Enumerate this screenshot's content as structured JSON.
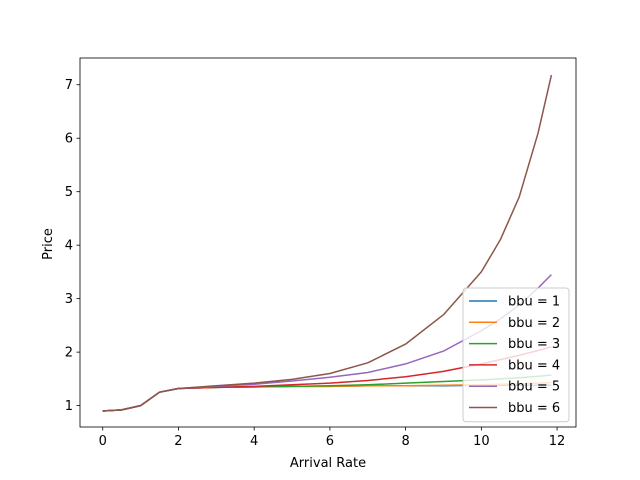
{
  "chart_data": {
    "type": "line",
    "title": "",
    "xlabel": "Arrival Rate",
    "ylabel": "Price",
    "xlim": [
      -0.6,
      12.5
    ],
    "ylim": [
      0.6,
      7.5
    ],
    "xticks": [
      "0",
      "2",
      "4",
      "6",
      "8",
      "10",
      "12"
    ],
    "yticks": [
      "1",
      "2",
      "3",
      "4",
      "5",
      "6",
      "7"
    ],
    "grid": false,
    "legend_position": "bottom-right",
    "x": [
      0,
      0.5,
      1.0,
      1.5,
      2.0,
      3.0,
      4.0,
      5.0,
      6.0,
      7.0,
      8.0,
      9.0,
      10.0,
      10.5,
      11.0,
      11.5,
      11.85
    ],
    "series": [
      {
        "name": "bbu = 1",
        "color": "#1f77b4",
        "values": [
          0.9,
          0.92,
          1.0,
          1.25,
          1.32,
          1.34,
          1.35,
          1.36,
          1.36,
          1.37,
          1.37,
          1.37,
          1.38,
          1.38,
          1.38,
          1.38,
          1.38
        ]
      },
      {
        "name": "bbu = 2",
        "color": "#ff7f0e",
        "values": [
          0.9,
          0.92,
          1.0,
          1.25,
          1.32,
          1.34,
          1.35,
          1.36,
          1.36,
          1.37,
          1.37,
          1.38,
          1.39,
          1.4,
          1.41,
          1.42,
          1.43
        ]
      },
      {
        "name": "bbu = 3",
        "color": "#2ca02c",
        "values": [
          0.9,
          0.92,
          1.0,
          1.25,
          1.32,
          1.34,
          1.35,
          1.36,
          1.37,
          1.39,
          1.42,
          1.45,
          1.48,
          1.5,
          1.52,
          1.55,
          1.57
        ]
      },
      {
        "name": "bbu = 4",
        "color": "#d62728",
        "values": [
          0.9,
          0.92,
          1.0,
          1.25,
          1.32,
          1.34,
          1.36,
          1.39,
          1.42,
          1.47,
          1.54,
          1.64,
          1.78,
          1.86,
          1.94,
          2.03,
          2.1
        ]
      },
      {
        "name": "bbu = 5",
        "color": "#9467bd",
        "values": [
          0.9,
          0.92,
          1.0,
          1.25,
          1.32,
          1.36,
          1.4,
          1.46,
          1.53,
          1.62,
          1.78,
          2.02,
          2.4,
          2.62,
          2.88,
          3.2,
          3.45
        ]
      },
      {
        "name": "bbu = 6",
        "color": "#8c564b",
        "values": [
          0.9,
          0.92,
          1.0,
          1.25,
          1.32,
          1.37,
          1.42,
          1.49,
          1.6,
          1.8,
          2.15,
          2.7,
          3.5,
          4.1,
          4.9,
          6.1,
          7.18
        ]
      }
    ]
  }
}
